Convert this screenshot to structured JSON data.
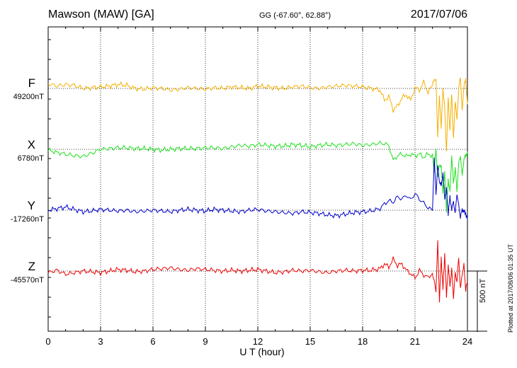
{
  "header": {
    "station": "Mawson (MAW)  [GA]",
    "coords": "GG (-67.60°,  62.88°)",
    "date": "2017/07/06"
  },
  "footer": {
    "plotted": "Plotted at 2017/08/06 01:35 UT"
  },
  "colors": {
    "F": "#f5b000",
    "X": "#1ee01e",
    "Y": "#0000cc",
    "Z": "#ee0000"
  },
  "chart_data": {
    "type": "line",
    "xlabel": "U T (hour)",
    "xlim": [
      0,
      24
    ],
    "xticks": [
      0,
      3,
      6,
      9,
      12,
      15,
      18,
      21,
      24
    ],
    "grid": true,
    "scale_bar": {
      "label": "500 nT",
      "value_nT": 500
    },
    "series": [
      {
        "name": "F",
        "baseline_label": "49200nT",
        "baseline_nT": 49200,
        "x": [
          0,
          0.5,
          1,
          1.5,
          2,
          2.5,
          3,
          3.5,
          4,
          4.5,
          5,
          5.5,
          6,
          6.5,
          7,
          7.5,
          8,
          8.5,
          9,
          9.5,
          10,
          10.5,
          11,
          11.5,
          12,
          12.5,
          13,
          13.5,
          14,
          14.5,
          15,
          15.5,
          16,
          16.5,
          17,
          17.5,
          18,
          18.5,
          19,
          19.25,
          19.5,
          19.75,
          20,
          20.25,
          20.5,
          20.75,
          21,
          21.25,
          21.5,
          21.75,
          22,
          22.1,
          22.2,
          22.3,
          22.4,
          22.5,
          22.6,
          22.7,
          22.8,
          22.9,
          23,
          23.1,
          23.2,
          23.3,
          23.4,
          23.5,
          23.6,
          23.7,
          23.8,
          23.9,
          24
        ],
        "y": [
          49260,
          49230,
          49250,
          49240,
          49200,
          49210,
          49220,
          49230,
          49250,
          49240,
          49200,
          49190,
          49210,
          49200,
          49180,
          49190,
          49210,
          49200,
          49190,
          49210,
          49200,
          49220,
          49210,
          49200,
          49230,
          49220,
          49210,
          49200,
          49220,
          49230,
          49210,
          49200,
          49220,
          49230,
          49240,
          49230,
          49220,
          49200,
          49180,
          49050,
          49100,
          48930,
          48980,
          49080,
          49120,
          49050,
          49210,
          49180,
          49280,
          49150,
          49240,
          49320,
          49300,
          48600,
          49100,
          48700,
          49200,
          48950,
          48400,
          49100,
          48650,
          49150,
          48550,
          49050,
          48800,
          49200,
          49350,
          48900,
          49250,
          49300,
          49000
        ],
        "y_note": "values in nT"
      },
      {
        "name": "X",
        "baseline_label": "6780nT",
        "baseline_nT": 6780,
        "x": [
          0,
          0.5,
          1,
          1.5,
          2,
          2.5,
          3,
          3.5,
          4,
          4.5,
          5,
          5.5,
          6,
          6.5,
          7,
          7.5,
          8,
          8.5,
          9,
          9.5,
          10,
          10.5,
          11,
          11.5,
          12,
          12.5,
          13,
          13.5,
          14,
          14.5,
          15,
          15.5,
          16,
          16.5,
          17,
          17.5,
          18,
          18.5,
          19,
          19.25,
          19.5,
          19.75,
          20,
          20.25,
          20.5,
          20.75,
          21,
          21.25,
          21.5,
          21.75,
          22,
          22.1,
          22.2,
          22.3,
          22.4,
          22.5,
          22.6,
          22.7,
          22.8,
          22.9,
          23,
          23.1,
          23.2,
          23.3,
          23.4,
          23.5,
          23.6,
          23.7,
          23.8,
          23.9,
          24
        ],
        "y": [
          6770,
          6740,
          6720,
          6700,
          6690,
          6730,
          6780,
          6790,
          6800,
          6800,
          6790,
          6790,
          6780,
          6770,
          6780,
          6790,
          6790,
          6790,
          6800,
          6800,
          6790,
          6810,
          6830,
          6820,
          6840,
          6830,
          6820,
          6820,
          6840,
          6830,
          6810,
          6830,
          6840,
          6830,
          6840,
          6850,
          6830,
          6840,
          6860,
          6850,
          6830,
          6640,
          6700,
          6720,
          6690,
          6720,
          6700,
          6720,
          6680,
          6720,
          6700,
          6500,
          6780,
          6420,
          6600,
          6550,
          6250,
          6480,
          6000,
          6400,
          6250,
          6700,
          6350,
          6550,
          6250,
          6600,
          6700,
          6450,
          6650,
          6700,
          6750
        ],
        "y_note": "values in nT"
      },
      {
        "name": "Y",
        "baseline_label": "-17260nT",
        "baseline_nT": -17260,
        "x": [
          0,
          0.5,
          1,
          1.5,
          2,
          2.5,
          3,
          3.5,
          4,
          4.5,
          5,
          5.5,
          6,
          6.5,
          7,
          7.5,
          8,
          8.5,
          9,
          9.5,
          10,
          10.5,
          11,
          11.5,
          12,
          12.5,
          13,
          13.5,
          14,
          14.5,
          15,
          15.5,
          16,
          16.5,
          17,
          17.5,
          18,
          18.5,
          19,
          19.25,
          19.5,
          19.75,
          20,
          20.25,
          20.5,
          20.75,
          21,
          21.25,
          21.5,
          21.75,
          22,
          22.1,
          22.2,
          22.3,
          22.4,
          22.5,
          22.6,
          22.7,
          22.8,
          22.9,
          23,
          23.1,
          23.2,
          23.3,
          23.4,
          23.5,
          23.6,
          23.7,
          23.8,
          23.9,
          24
        ],
        "y": [
          -17260,
          -17240,
          -17220,
          -17250,
          -17280,
          -17270,
          -17250,
          -17260,
          -17270,
          -17260,
          -17280,
          -17270,
          -17260,
          -17270,
          -17280,
          -17260,
          -17250,
          -17260,
          -17270,
          -17250,
          -17260,
          -17270,
          -17280,
          -17260,
          -17250,
          -17270,
          -17280,
          -17290,
          -17300,
          -17280,
          -17290,
          -17300,
          -17320,
          -17330,
          -17310,
          -17290,
          -17280,
          -17270,
          -17240,
          -17180,
          -17140,
          -17160,
          -17090,
          -17120,
          -17070,
          -17130,
          -17050,
          -17120,
          -17170,
          -17230,
          -17260,
          -16600,
          -17060,
          -16700,
          -16900,
          -16950,
          -16800,
          -17100,
          -17000,
          -17300,
          -17100,
          -17250,
          -17150,
          -17300,
          -17050,
          -17200,
          -17350,
          -17250,
          -17280,
          -17300,
          -17380
        ],
        "y_note": "values in nT"
      },
      {
        "name": "Z",
        "baseline_label": "-45570nT",
        "baseline_nT": -45570,
        "x": [
          0,
          0.5,
          1,
          1.5,
          2,
          2.5,
          3,
          3.5,
          4,
          4.5,
          5,
          5.5,
          6,
          6.5,
          7,
          7.5,
          8,
          8.5,
          9,
          9.5,
          10,
          10.5,
          11,
          11.5,
          12,
          12.5,
          13,
          13.5,
          14,
          14.5,
          15,
          15.5,
          16,
          16.5,
          17,
          17.5,
          18,
          18.5,
          19,
          19.25,
          19.5,
          19.75,
          20,
          20.25,
          20.5,
          20.75,
          21,
          21.25,
          21.5,
          21.75,
          22,
          22.1,
          22.2,
          22.3,
          22.4,
          22.5,
          22.6,
          22.7,
          22.8,
          22.9,
          23,
          23.1,
          23.2,
          23.3,
          23.4,
          23.5,
          23.6,
          23.7,
          23.8,
          23.9,
          24
        ],
        "y": [
          -45590,
          -45560,
          -45610,
          -45590,
          -45570,
          -45580,
          -45590,
          -45570,
          -45550,
          -45560,
          -45580,
          -45570,
          -45550,
          -45540,
          -45530,
          -45550,
          -45560,
          -45540,
          -45550,
          -45560,
          -45570,
          -45560,
          -45570,
          -45560,
          -45550,
          -45570,
          -45590,
          -45580,
          -45560,
          -45570,
          -45560,
          -45580,
          -45590,
          -45570,
          -45560,
          -45570,
          -45560,
          -45560,
          -45540,
          -45480,
          -45520,
          -45420,
          -45500,
          -45480,
          -45560,
          -45600,
          -45660,
          -45560,
          -45620,
          -45650,
          -45600,
          -45700,
          -45820,
          -45200,
          -45950,
          -45400,
          -45800,
          -45350,
          -45900,
          -45500,
          -45750,
          -45550,
          -45900,
          -45600,
          -45700,
          -45400,
          -45800,
          -45600,
          -45500,
          -45800,
          -45700
        ],
        "y_note": "values in nT"
      }
    ]
  }
}
